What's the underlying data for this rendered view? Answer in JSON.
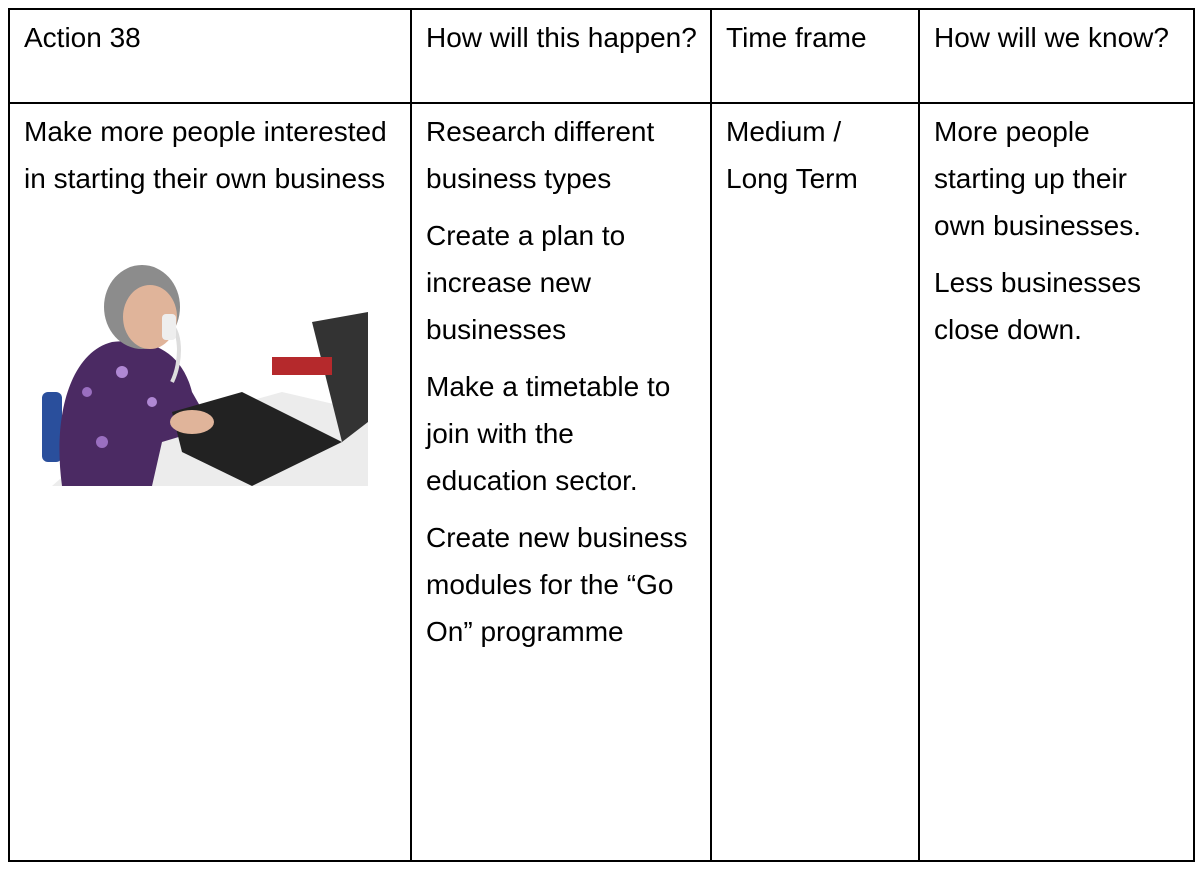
{
  "table": {
    "header": [
      "Action 38",
      "How will this happen?",
      "Time frame",
      "How will we know?"
    ],
    "rows": [
      [
        "Make more people interested in starting their own business",
        [
          "Research different business types",
          "Create a plan to increase new businesses",
          "Make a timetable to join with the education sector.",
          "Create new business modules for the “Go On” programme"
        ],
        "Medium / Long Term",
        [
          "More people starting up their own businesses.",
          "Less businesses close down."
        ]
      ]
    ]
  }
}
